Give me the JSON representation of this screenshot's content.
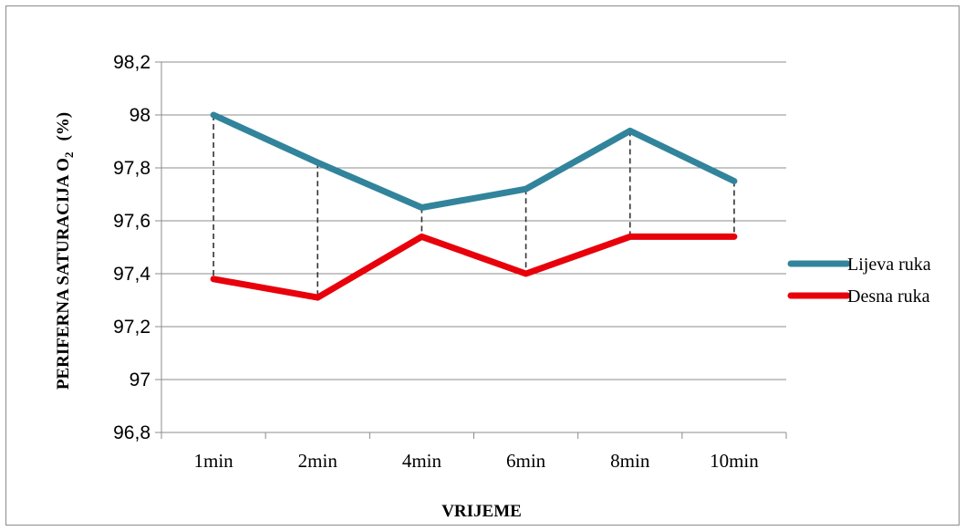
{
  "chart_data": {
    "type": "line",
    "title": "",
    "xlabel": "VRIJEME",
    "ylabel": "PERIFERNA SATURACIJA O",
    "ylabel_subscript": "2",
    "ylabel_unit": "(%)",
    "categories": [
      "1min",
      "2min",
      "4min",
      "6min",
      "8min",
      "10min"
    ],
    "ylim": [
      96.8,
      98.2
    ],
    "yticks": [
      96.8,
      97.0,
      97.2,
      97.4,
      97.6,
      97.8,
      98.0,
      98.2
    ],
    "ytick_labels": [
      "96,8",
      "97",
      "97,2",
      "97,4",
      "97,6",
      "97,8",
      "98",
      "98,2"
    ],
    "grid": true,
    "drop_lines": true,
    "legend_position": "right",
    "series": [
      {
        "name": "Lijeva ruka",
        "color": "#31849b",
        "values": [
          98.0,
          97.82,
          97.65,
          97.72,
          97.94,
          97.75
        ]
      },
      {
        "name": "Desna ruka",
        "color": "#e8000b",
        "values": [
          97.38,
          97.31,
          97.54,
          97.4,
          97.54,
          97.54
        ]
      }
    ]
  }
}
